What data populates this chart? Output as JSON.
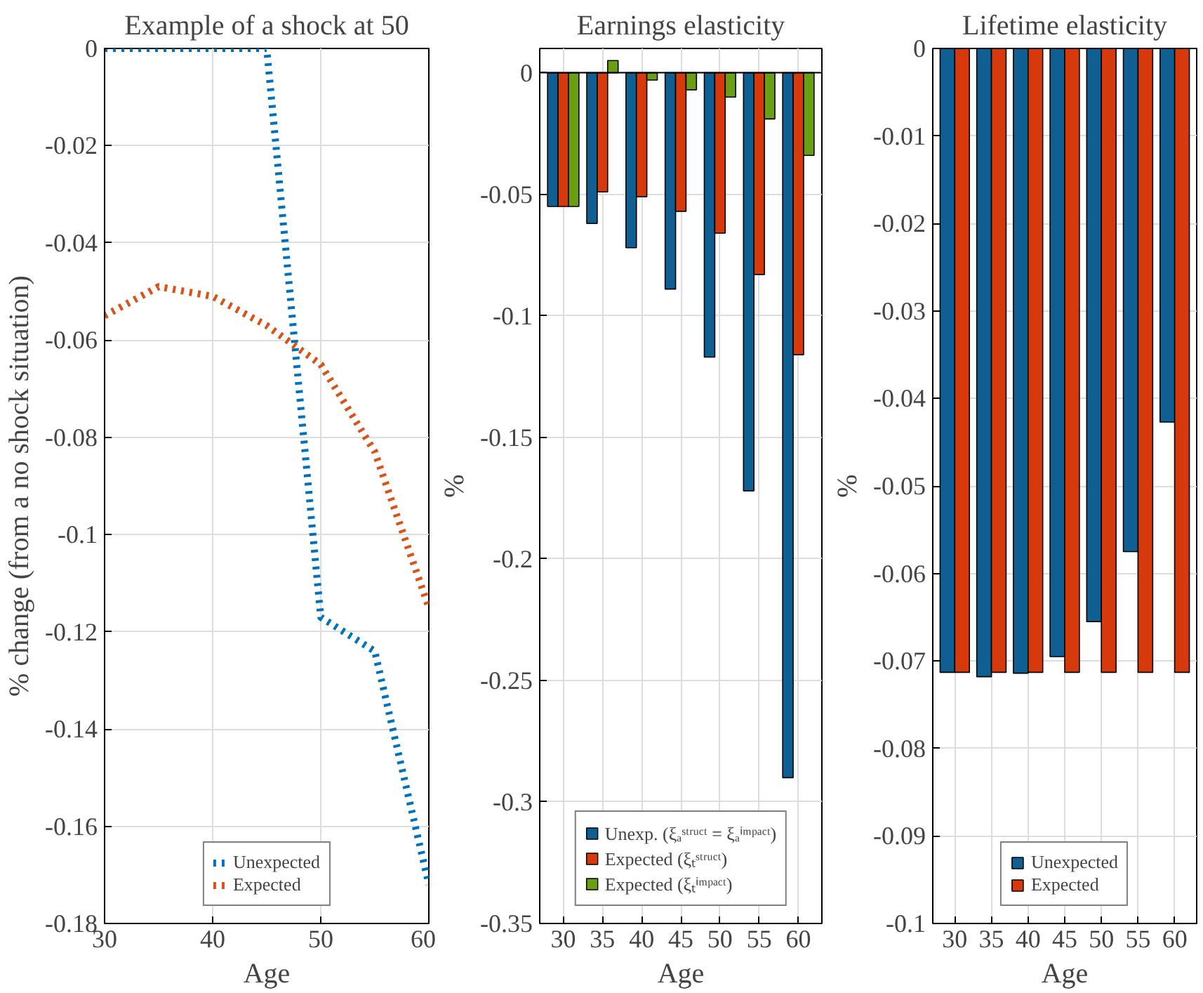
{
  "chart_data": [
    {
      "type": "line",
      "title": "Example of a shock at 50",
      "xlabel": "Age",
      "ylabel": "% change (from a no shock situation)",
      "x": [
        30,
        35,
        40,
        45,
        50,
        55,
        60
      ],
      "xlim": [
        30,
        60
      ],
      "ylim": [
        -0.18,
        0
      ],
      "xticks": [
        30,
        40,
        50,
        60
      ],
      "yticks": [
        0,
        -0.02,
        -0.04,
        -0.06,
        -0.08,
        -0.1,
        -0.12,
        -0.14,
        -0.16,
        -0.18
      ],
      "grid": true,
      "legend": "bottom",
      "line_style": "dotted",
      "series": [
        {
          "name": "Unexpected",
          "color": "#0072bd",
          "values": [
            0,
            0,
            0,
            0,
            -0.117,
            -0.124,
            -0.172
          ]
        },
        {
          "name": "Expected",
          "color": "#d95319",
          "values": [
            -0.055,
            -0.049,
            -0.051,
            -0.057,
            -0.065,
            -0.083,
            -0.115
          ]
        }
      ]
    },
    {
      "type": "bar",
      "title": "Earnings elasticity",
      "xlabel": "Age",
      "ylabel": "%",
      "categories": [
        "30",
        "35",
        "40",
        "45",
        "50",
        "55",
        "60"
      ],
      "ylim": [
        -0.35,
        0.01
      ],
      "yticks": [
        0,
        -0.05,
        -0.1,
        -0.15,
        -0.2,
        -0.25,
        -0.3,
        -0.35
      ],
      "grid": true,
      "legend": "bottom",
      "series": [
        {
          "name": "Unexp. (ξₐˢᵗʳᵘᶜᵗ = ξₐⁱᵐᵖᵃᶜᵗ)",
          "color": "#0f5f92",
          "values": [
            -0.055,
            -0.062,
            -0.072,
            -0.089,
            -0.117,
            -0.172,
            -0.29
          ]
        },
        {
          "name": "Expected (ξₜˢᵗʳᵘᶜᵗ)",
          "color": "#d63a0c",
          "values": [
            -0.055,
            -0.049,
            -0.051,
            -0.057,
            -0.066,
            -0.083,
            -0.116
          ]
        },
        {
          "name": "Expected (ξₜⁱᵐᵖᵃᶜᵗ)",
          "color": "#6a9e13",
          "values": [
            -0.055,
            0.005,
            -0.003,
            -0.007,
            -0.01,
            -0.019,
            -0.034
          ]
        }
      ]
    },
    {
      "type": "bar",
      "title": "Lifetime elasticity",
      "xlabel": "Age",
      "ylabel": "%",
      "categories": [
        "30",
        "35",
        "40",
        "45",
        "50",
        "55",
        "60"
      ],
      "ylim": [
        -0.1,
        0
      ],
      "yticks": [
        0,
        -0.01,
        -0.02,
        -0.03,
        -0.04,
        -0.05,
        -0.06,
        -0.07,
        -0.08,
        -0.09,
        -0.1
      ],
      "grid": true,
      "legend": "bottom",
      "series": [
        {
          "name": "Unexpected",
          "color": "#0f5f92",
          "values": [
            -0.0713,
            -0.0718,
            -0.0714,
            -0.0695,
            -0.0655,
            -0.0575,
            -0.0427
          ]
        },
        {
          "name": "Expected",
          "color": "#d63a0c",
          "values": [
            -0.0713,
            -0.0713,
            -0.0713,
            -0.0713,
            -0.0713,
            -0.0713,
            -0.0713
          ]
        }
      ]
    }
  ]
}
